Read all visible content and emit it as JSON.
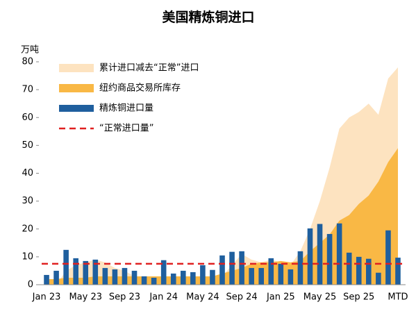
{
  "chart_data": {
    "type": "combo",
    "title": "美国精炼铜进口",
    "y_axis_label": "万吨",
    "categories": [
      "Jan 23",
      null,
      null,
      null,
      "May 23",
      null,
      null,
      null,
      "Sep 23",
      null,
      null,
      null,
      "Jan 24",
      null,
      null,
      null,
      "May 24",
      null,
      null,
      null,
      "Sep 24",
      null,
      null,
      null,
      "Jan 25",
      null,
      null,
      null,
      "May 25",
      null,
      null,
      null,
      "Sep 25",
      null,
      null,
      null,
      "MTD"
    ],
    "series": [
      {
        "name": "累计进口减去“正常”进口",
        "kind": "area",
        "color": "#fde3c0",
        "values": [
          1,
          0,
          5,
          7,
          8,
          9,
          8,
          6,
          5,
          3,
          0,
          0,
          1,
          0,
          0,
          0,
          0,
          0,
          3,
          7,
          11,
          9,
          8,
          9,
          8,
          7,
          12,
          20,
          30,
          42,
          56,
          60,
          62,
          65,
          61,
          74,
          78
        ]
      },
      {
        "name": "纽约商品交易所库存",
        "kind": "area",
        "color": "#f9b845",
        "values": [
          2,
          2,
          2.5,
          2.5,
          2.5,
          3,
          3,
          3,
          3,
          3,
          3,
          3,
          3,
          3,
          3,
          3,
          3,
          3,
          4,
          5,
          6,
          7.5,
          8,
          8,
          8.5,
          8,
          8.5,
          12,
          15,
          18,
          23,
          25,
          29,
          32,
          37,
          44,
          49
        ]
      },
      {
        "name": "精炼铜进口量",
        "kind": "bar",
        "color": "#1f5f9e",
        "values": [
          3.5,
          5,
          12.5,
          9.5,
          8.5,
          9,
          6,
          5.5,
          6,
          5,
          3,
          2.5,
          8.8,
          4,
          5,
          4.5,
          7,
          5.3,
          10.5,
          11.8,
          12,
          6,
          6,
          9.5,
          7.5,
          5.5,
          12,
          20.2,
          21.8,
          18.2,
          22,
          11.5,
          10,
          9.3,
          4.3,
          19.5,
          9.7
        ]
      }
    ],
    "reference_line": {
      "name": "“正常进口量”",
      "value": 7.5,
      "color": "#e02020"
    },
    "ylim": [
      0,
      80
    ],
    "yticks": [
      0,
      10,
      20,
      30,
      40,
      50,
      60,
      70,
      80
    ]
  }
}
